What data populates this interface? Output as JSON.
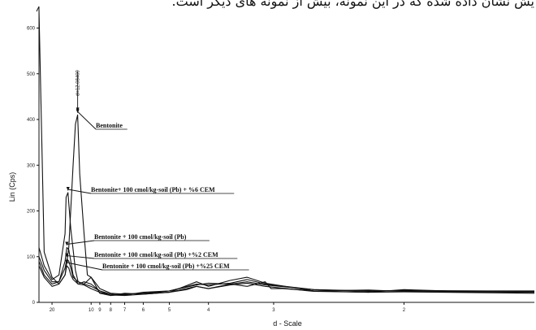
{
  "header_text": "یش نشان داده شده که در این نمونه، بیش از نمونه های دیگر است.",
  "chart_data": {
    "type": "line",
    "title": "",
    "xlabel": "d - Scale",
    "ylabel": "Lin (Cps)",
    "ylim": [
      0,
      640
    ],
    "x_scale": "reciprocal (2-theta based d-spacing, d decreases to the right)",
    "x_ticks": [
      "20",
      "10",
      "9",
      "8",
      "7",
      "6",
      "5",
      "4",
      "3",
      "2"
    ],
    "y_ticks": [
      "0",
      "100",
      "200",
      "300",
      "400",
      "500",
      "600"
    ],
    "peak_label": "d=12.08409",
    "annotations": [
      {
        "text": "Bentonite",
        "series": 0
      },
      {
        "text": "Bentonite+ 100 cmol/kg-soil (Pb) + %6 CEM",
        "series": 1
      },
      {
        "text": "Bentonite + 100 cmol/kg-soil (Pb)",
        "series": 2
      },
      {
        "text": "Bentonite + 100 cmol/kg-soil (Pb) +%2 CEM",
        "series": 3
      },
      {
        "text": "Bentonite + 100 cmol/kg-soil (Pb) +%25 CEM",
        "series": 4
      }
    ],
    "series": [
      {
        "d": [
          30,
          25,
          20,
          17,
          15,
          14,
          13,
          12.5,
          12.08,
          11.7,
          11,
          10.5,
          10,
          9,
          8,
          7,
          6,
          5,
          4.5,
          4.26,
          4,
          3.6,
          3.34,
          3.1,
          3.03,
          2.9,
          2.6,
          2.2,
          2,
          1.8,
          1.6,
          1.5
        ],
        "y": [
          640,
          110,
          55,
          40,
          60,
          120,
          300,
          390,
          410,
          280,
          150,
          60,
          55,
          20,
          15,
          20,
          18,
          22,
          28,
          35,
          30,
          40,
          35,
          45,
          30,
          30,
          25,
          22,
          28,
          25,
          25,
          25
        ]
      },
      {
        "d": [
          30,
          25,
          20,
          17,
          15,
          14.7,
          14.2,
          13.5,
          12.5,
          12,
          11,
          10,
          9,
          8,
          7,
          6,
          5,
          4.26,
          4,
          3.6,
          3.34,
          3.1,
          2.6,
          2.2,
          2,
          1.5
        ],
        "y": [
          120,
          80,
          50,
          60,
          150,
          230,
          240,
          160,
          70,
          45,
          40,
          55,
          30,
          20,
          18,
          20,
          25,
          40,
          38,
          42,
          50,
          40,
          28,
          25,
          26,
          24
        ]
      },
      {
        "d": [
          30,
          25,
          20,
          17,
          15,
          14.5,
          14,
          13.5,
          13,
          12,
          11,
          10,
          9,
          8,
          7,
          6,
          5,
          4.26,
          4,
          3.6,
          3.34,
          3.1,
          2.6,
          2.2,
          2,
          1.5
        ],
        "y": [
          100,
          70,
          45,
          45,
          90,
          120,
          115,
          90,
          60,
          40,
          45,
          40,
          25,
          15,
          18,
          20,
          22,
          45,
          35,
          48,
          55,
          42,
          25,
          27,
          24,
          22
        ]
      },
      {
        "d": [
          30,
          25,
          20,
          17,
          15,
          14.5,
          14,
          13.5,
          13,
          12,
          11,
          10,
          9,
          8,
          7,
          6,
          5,
          4.26,
          4,
          3.6,
          3.34,
          3.1,
          2.6,
          2.2,
          2,
          1.5
        ],
        "y": [
          90,
          60,
          40,
          45,
          75,
          95,
          90,
          75,
          55,
          45,
          40,
          35,
          25,
          18,
          16,
          22,
          25,
          38,
          42,
          40,
          45,
          38,
          28,
          24,
          26,
          23
        ]
      },
      {
        "d": [
          30,
          25,
          20,
          17,
          15,
          14.5,
          14,
          13.5,
          13,
          12,
          11,
          10,
          9,
          8,
          7,
          6,
          5,
          4.26,
          4,
          3.6,
          3.34,
          3.1,
          2.6,
          2.2,
          2,
          1.5
        ],
        "y": [
          80,
          55,
          35,
          40,
          60,
          80,
          75,
          60,
          50,
          40,
          38,
          30,
          22,
          16,
          15,
          18,
          22,
          35,
          30,
          38,
          42,
          35,
          24,
          22,
          23,
          20
        ]
      }
    ]
  }
}
